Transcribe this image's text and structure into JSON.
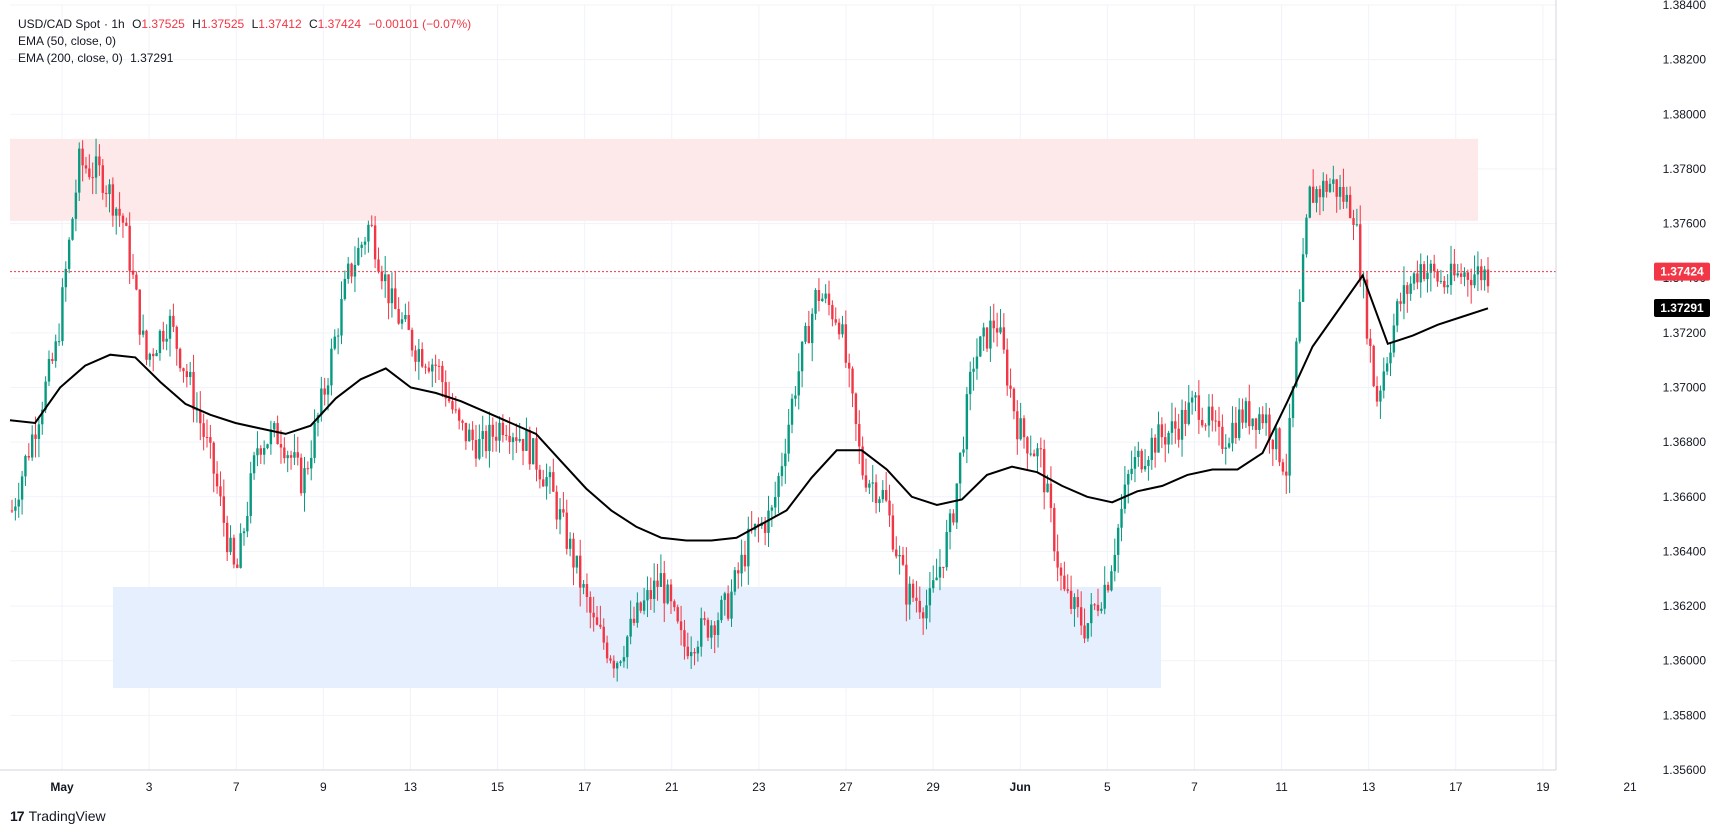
{
  "header": {
    "symbol": "USD/CAD Spot",
    "interval": "1h",
    "ohlc": {
      "o_label": "O",
      "o_value": "1.37525",
      "h_label": "H",
      "h_value": "1.37525",
      "l_label": "L",
      "l_value": "1.37412",
      "c_label": "C",
      "c_value": "1.37424",
      "change": "−0.00101 (−0.07%)"
    },
    "ema50_label": "EMA (50, close, 0)",
    "ema200_label": "EMA (200, close, 0)",
    "ema200_value": "1.37291"
  },
  "brand": {
    "logo": "17",
    "name": "TradingView"
  },
  "colors": {
    "up": "#089981",
    "down": "#f23645",
    "ema": "#000000",
    "resistance_zone": "#fde8ea",
    "support_zone": "#e6effd",
    "grid": "#f0f3fa",
    "price_label_bg": "#f23645"
  },
  "chart_data": {
    "type": "candlestick",
    "y_axis": {
      "min": 1.356,
      "max": 1.384,
      "ticks": [
        "1.35600",
        "1.35800",
        "1.36000",
        "1.36200",
        "1.36400",
        "1.36600",
        "1.36800",
        "1.37000",
        "1.37200",
        "1.37400",
        "1.37600",
        "1.37800",
        "1.38000",
        "1.38200",
        "1.38400"
      ]
    },
    "x_axis": {
      "labels": [
        "May",
        "3",
        "7",
        "9",
        "13",
        "15",
        "17",
        "21",
        "23",
        "27",
        "29",
        "Jun",
        "5",
        "7",
        "11",
        "13",
        "17",
        "19",
        "21"
      ],
      "bold_labels": [
        "May",
        "Jun"
      ]
    },
    "current_price": "1.37424",
    "ema200_current": "1.37291",
    "zones": [
      {
        "name": "resistance",
        "from": 1.3761,
        "to": 1.3791
      },
      {
        "name": "support",
        "from": 1.359,
        "to": 1.3627
      }
    ],
    "ema200": [
      1.3688,
      1.3687,
      1.37,
      1.3708,
      1.3712,
      1.3711,
      1.3702,
      1.3694,
      1.369,
      1.3687,
      1.3685,
      1.3683,
      1.3686,
      1.3696,
      1.3703,
      1.3707,
      1.37,
      1.3698,
      1.3695,
      1.3691,
      1.3687,
      1.3683,
      1.3673,
      1.3663,
      1.3655,
      1.3649,
      1.3645,
      1.3644,
      1.3644,
      1.3645,
      1.365,
      1.3655,
      1.3667,
      1.3677,
      1.3677,
      1.367,
      1.366,
      1.3657,
      1.3659,
      1.3668,
      1.3671,
      1.3669,
      1.3664,
      1.366,
      1.3658,
      1.3662,
      1.3664,
      1.3668,
      1.367,
      1.367,
      1.3676,
      1.3695,
      1.3715,
      1.3728,
      1.3741,
      1.3716,
      1.3719,
      1.3723,
      1.3726,
      1.3729
    ],
    "price_path": [
      1.3655,
      1.3685,
      1.3715,
      1.3782,
      1.3778,
      1.376,
      1.371,
      1.3725,
      1.37,
      1.367,
      1.363,
      1.368,
      1.3683,
      1.3665,
      1.37,
      1.374,
      1.376,
      1.373,
      1.3715,
      1.3708,
      1.3685,
      1.3678,
      1.3688,
      1.368,
      1.3665,
      1.364,
      1.3613,
      1.36,
      1.3617,
      1.363,
      1.3605,
      1.3612,
      1.362,
      1.3645,
      1.3654,
      1.37,
      1.3735,
      1.3725,
      1.367,
      1.366,
      1.3625,
      1.362,
      1.365,
      1.371,
      1.3725,
      1.3685,
      1.3674,
      1.3625,
      1.3612,
      1.363,
      1.367,
      1.368,
      1.3685,
      1.3695,
      1.368,
      1.369,
      1.369,
      1.367,
      1.377,
      1.3775,
      1.3765,
      1.3695,
      1.373,
      1.3745,
      1.3738,
      1.3742,
      1.3742
    ]
  }
}
